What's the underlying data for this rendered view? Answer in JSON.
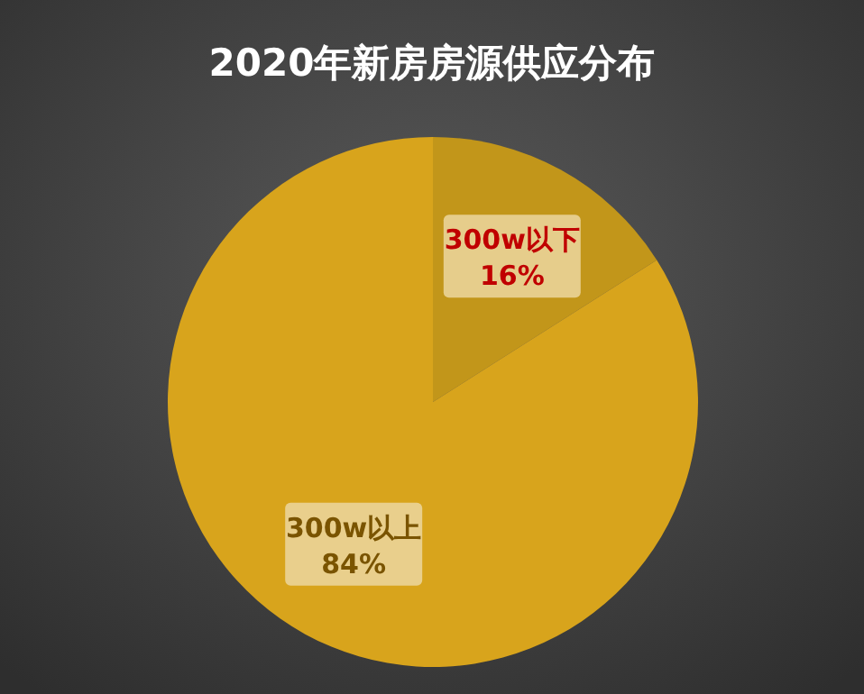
{
  "chart_data": {
    "type": "pie",
    "title": "2020年新房房源供应分布",
    "categories": [
      "300w以下",
      "300w以上"
    ],
    "values": [
      16,
      84
    ],
    "colors": [
      "#c2961a",
      "#d8a41c"
    ],
    "value_labels": [
      "16%",
      "84%"
    ]
  }
}
